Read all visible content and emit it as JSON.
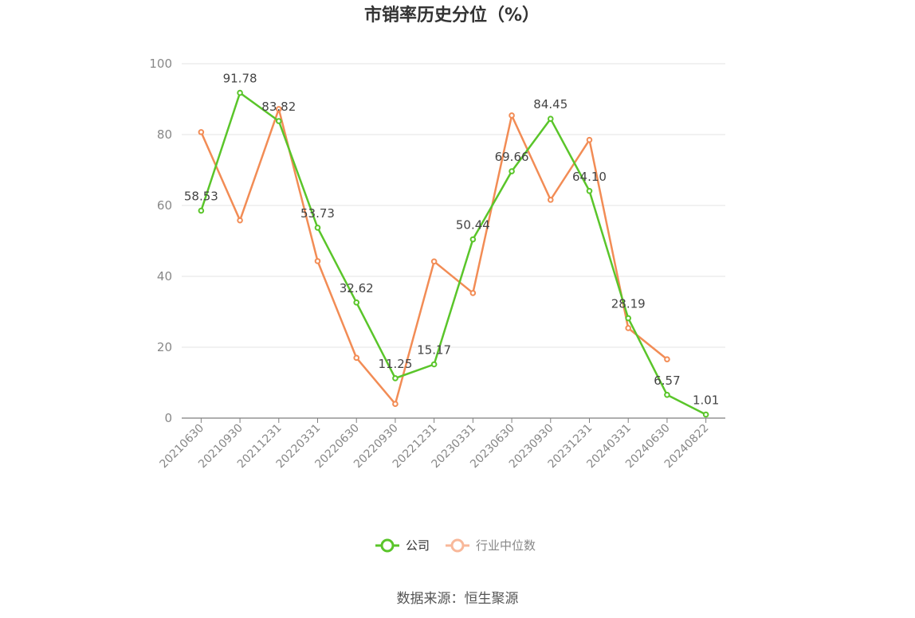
{
  "chart_data": {
    "type": "line",
    "title": "市销率历史分位（%）",
    "categories": [
      "20210630",
      "20210930",
      "20211231",
      "20220331",
      "20220630",
      "20220930",
      "20221231",
      "20230331",
      "20230630",
      "20230930",
      "20231231",
      "20240331",
      "20240630",
      "20240822"
    ],
    "ylim": [
      0,
      100
    ],
    "yticks": [
      0,
      20,
      40,
      60,
      80,
      100
    ],
    "grid": true,
    "legend_position": "bottom",
    "series": [
      {
        "name": "公司",
        "color": "#5ac52a",
        "values": [
          58.53,
          91.78,
          83.82,
          53.73,
          32.62,
          11.25,
          15.17,
          50.44,
          69.66,
          84.45,
          64.1,
          28.19,
          6.57,
          1.01
        ],
        "labels": [
          "58.53",
          "91.78",
          "83.82",
          "53.73",
          "32.62",
          "11.25",
          "15.17",
          "50.44",
          "69.66",
          "84.45",
          "64.10",
          "28.19",
          "6.57",
          "1.01"
        ]
      },
      {
        "name": "行业中位数",
        "color": "#f28c55",
        "values": [
          80.7,
          55.8,
          87.2,
          44.3,
          17.0,
          4.0,
          44.2,
          35.3,
          85.4,
          61.6,
          78.5,
          25.4,
          16.6,
          null
        ]
      }
    ]
  },
  "legend": {
    "company_label": "公司",
    "industry_label": "行业中位数",
    "industry_legend_color": "#f8b89a"
  },
  "source_text": "数据来源：恒生聚源"
}
